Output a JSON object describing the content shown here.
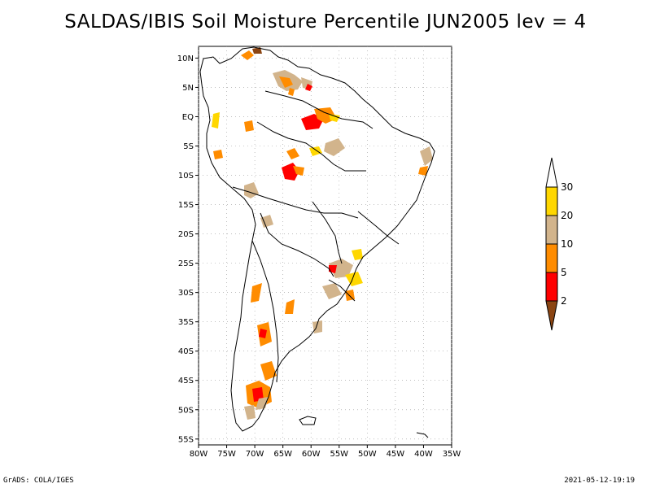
{
  "title": "SALDAS/IBIS Soil Moisture Percentile JUN2005 lev = 4",
  "axes": {
    "lat_labels": [
      "10N",
      "5N",
      "EQ",
      "5S",
      "10S",
      "15S",
      "20S",
      "25S",
      "30S",
      "35S",
      "40S",
      "45S",
      "50S",
      "55S"
    ],
    "lon_labels": [
      "80W",
      "75W",
      "70W",
      "65W",
      "60W",
      "55W",
      "50W",
      "45W",
      "40W",
      "35W"
    ],
    "lat_range": [
      12,
      -56
    ],
    "lon_range": [
      -80,
      -35
    ]
  },
  "colorbar": {
    "labels": [
      "2",
      "5",
      "10",
      "20",
      "30"
    ],
    "colors": [
      "#8b4513",
      "#ff0000",
      "#ff8c00",
      "#d2b48c",
      "#ffd700",
      "#ffffff"
    ]
  },
  "footer": {
    "left": "GrADS: COLA/IGES",
    "right": "2021-05-12-19:19"
  },
  "shading_colors": {
    "very_low": "#ff0000",
    "low": "#ff8c00",
    "moderate": "#d2b48c",
    "mild": "#ffd700",
    "extreme": "#8b4513"
  }
}
